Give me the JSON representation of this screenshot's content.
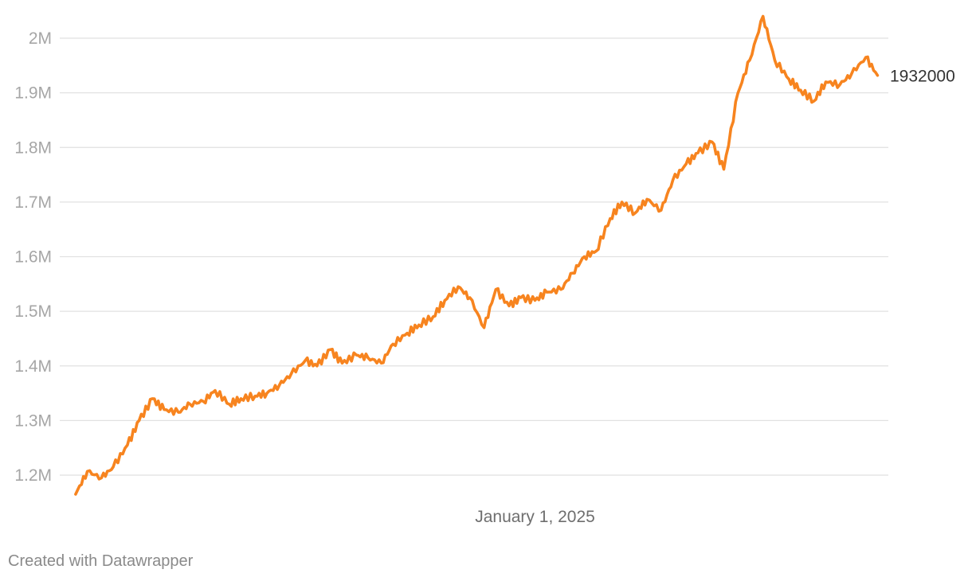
{
  "chart_data": {
    "type": "line",
    "title": "",
    "xlabel": "",
    "ylabel": "",
    "grid": true,
    "legend": "none",
    "ylim": [
      1150000,
      2050000
    ],
    "yticks": [
      1200000,
      1300000,
      1400000,
      1500000,
      1600000,
      1700000,
      1800000,
      1900000,
      2000000
    ],
    "ytick_labels": [
      "1.2M",
      "1.3M",
      "1.4M",
      "1.5M",
      "1.6M",
      "1.7M",
      "1.8M",
      "1.9M",
      "2M"
    ],
    "xlim": [
      "2023-06-12",
      "2026-02-28"
    ],
    "xticks": [
      "2025-01-01"
    ],
    "xtick_labels": [
      "January 1, 2025"
    ],
    "end_label": "1932000",
    "line_color": "#f7841f",
    "series": [
      {
        "x": [
          "2023-07-01",
          "2023-07-15",
          "2023-08-01",
          "2023-08-15",
          "2023-09-01",
          "2023-09-15",
          "2023-10-01",
          "2023-10-15",
          "2023-11-01",
          "2023-11-15",
          "2023-12-01",
          "2023-12-15",
          "2024-01-01",
          "2024-01-15",
          "2024-02-01",
          "2024-02-15",
          "2024-03-01",
          "2024-03-15",
          "2024-04-01",
          "2024-04-15",
          "2024-05-01",
          "2024-05-15",
          "2024-06-01",
          "2024-06-15",
          "2024-07-01",
          "2024-07-15",
          "2024-08-01",
          "2024-08-15",
          "2024-09-01",
          "2024-09-15",
          "2024-10-01",
          "2024-10-15",
          "2024-11-01",
          "2024-11-15",
          "2024-12-01",
          "2024-12-15",
          "2025-01-01",
          "2025-01-15",
          "2025-02-01",
          "2025-02-15",
          "2025-03-01",
          "2025-03-15",
          "2025-04-01",
          "2025-04-15",
          "2025-05-01",
          "2025-05-15",
          "2025-06-01",
          "2025-06-15",
          "2025-07-01",
          "2025-07-15",
          "2025-08-01",
          "2025-08-15",
          "2025-09-01",
          "2025-09-15",
          "2025-10-01",
          "2025-10-15",
          "2025-11-01",
          "2025-11-15",
          "2025-12-01",
          "2025-12-15",
          "2026-01-01",
          "2026-01-15",
          "2026-02-01",
          "2026-02-15"
        ],
        "y": [
          1165000,
          1207000,
          1195000,
          1215000,
          1255000,
          1300000,
          1340000,
          1320000,
          1315000,
          1330000,
          1335000,
          1355000,
          1330000,
          1340000,
          1345000,
          1350000,
          1365000,
          1385000,
          1410000,
          1400000,
          1430000,
          1405000,
          1420000,
          1415000,
          1405000,
          1440000,
          1460000,
          1475000,
          1490000,
          1520000,
          1545000,
          1525000,
          1470000,
          1540000,
          1510000,
          1525000,
          1520000,
          1535000,
          1540000,
          1570000,
          1600000,
          1610000,
          1670000,
          1700000,
          1680000,
          1705000,
          1685000,
          1740000,
          1770000,
          1790000,
          1810000,
          1760000,
          1900000,
          1960000,
          2040000,
          1960000,
          1925000,
          1905000,
          1885000,
          1920000,
          1915000,
          1935000,
          1965000,
          1932000
        ]
      }
    ]
  },
  "footer": {
    "credit": "Created with Datawrapper"
  }
}
